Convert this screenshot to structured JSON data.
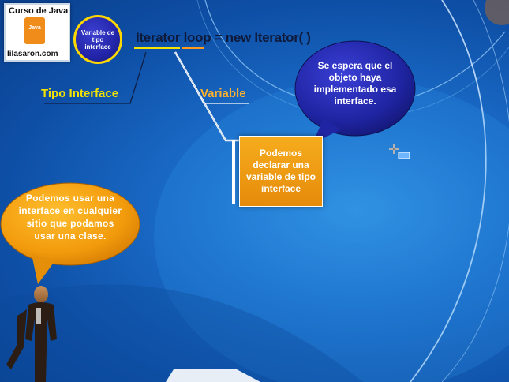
{
  "logo": {
    "title": "Curso de Java",
    "cup_label": "Java",
    "domain": "lilasaron.com"
  },
  "badge": {
    "text": "Variable de tipo interface"
  },
  "code": {
    "type_token": "Iterator",
    "var_token": "loop",
    "rest": " = new Iterator( )"
  },
  "labels": {
    "type_label": "Tipo Interface",
    "var_label": "Variable"
  },
  "callouts": {
    "center_box": "Podemos declarar una variable de tipo interface",
    "right_bubble": "Se espera que el objeto haya implementado esa interface.",
    "left_bubble": "Podemos usar una interface en cualquier sitio que podamos usar una clase."
  },
  "colors": {
    "background": "#1a6cc8",
    "type_highlight": "#f4e200",
    "var_highlight": "#ffb22a",
    "center_box": "#f2a11a",
    "bubble_right": "#1c2a9c",
    "bubble_left": "#f7a20f"
  },
  "icons": {
    "cursor": "crosshair-cursor-icon",
    "figure": "person-figure-icon"
  }
}
